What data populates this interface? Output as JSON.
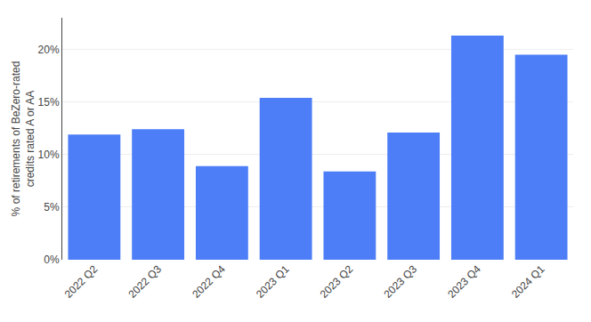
{
  "chart_data": {
    "type": "bar",
    "categories": [
      "2022 Q2",
      "2022 Q3",
      "2022 Q4",
      "2023 Q1",
      "2023 Q2",
      "2023 Q3",
      "2023 Q4",
      "2024 Q1"
    ],
    "values": [
      11.9,
      12.4,
      8.9,
      15.4,
      8.4,
      12.1,
      21.3,
      19.5
    ],
    "color": "#4d7ef7",
    "ylabel": "% of retirements of BeZero-rated\ncredits rated A or AA",
    "ylim": [
      0,
      23
    ],
    "yticks": [
      {
        "value": 0,
        "label": "0%"
      },
      {
        "value": 5,
        "label": "5%"
      },
      {
        "value": 10,
        "label": "10%"
      },
      {
        "value": 15,
        "label": "15%"
      },
      {
        "value": 20,
        "label": "20%"
      }
    ],
    "grid": true
  }
}
